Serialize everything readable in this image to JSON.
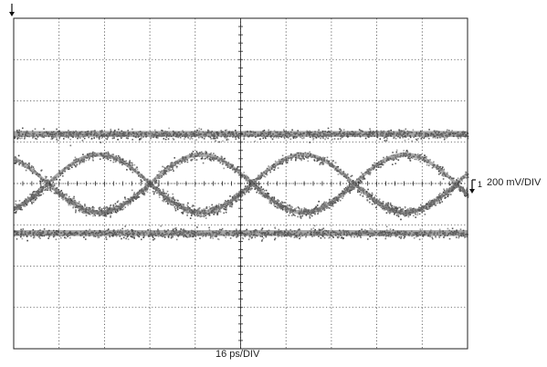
{
  "chart_data": {
    "type": "eye-diagram",
    "horizontal_scale": "16 ps/DIV",
    "vertical_scale": "200 mV/DIV",
    "channel_marker": "1",
    "divisions": {
      "horizontal": 10,
      "vertical": 8
    },
    "grid": true,
    "eye": {
      "levels_div": [
        -1.2,
        -0.7,
        0.7,
        1.2
      ],
      "crossings_div": [
        0.75,
        3.0,
        5.25,
        7.5,
        9.75
      ],
      "crossing_level_div": 0,
      "noise_band_div": 0.1
    }
  }
}
